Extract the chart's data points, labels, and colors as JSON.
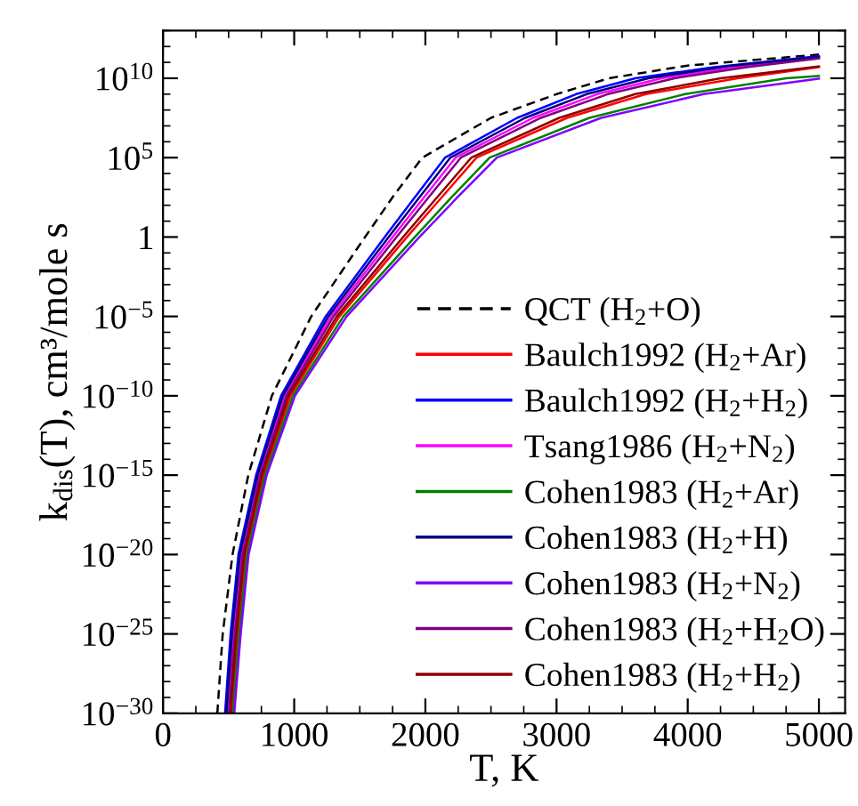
{
  "chart_data": {
    "type": "line",
    "xlabel": "T, K",
    "ylabel": "k$_{dis}$(T), cm³/mole s",
    "xlim": [
      0,
      5200
    ],
    "xticks": [
      0,
      1000,
      2000,
      3000,
      4000,
      5000
    ],
    "ylim": [
      1e-30,
      10000000000000.0
    ],
    "log": "y",
    "yticks": [
      {
        "value": 1e-30,
        "label": "10$^{−30}$"
      },
      {
        "value": 1e-25,
        "label": "10$^{−25}$"
      },
      {
        "value": 1e-20,
        "label": "10$^{−20}$"
      },
      {
        "value": 1e-15,
        "label": "10$^{−15}$"
      },
      {
        "value": 1e-10,
        "label": "10$^{−10}$"
      },
      {
        "value": 1e-05,
        "label": "10$^{−5}$"
      },
      {
        "value": 1,
        "label": "1"
      },
      {
        "value": 100000.0,
        "label": "10$^{5}$"
      },
      {
        "value": 10000000000.0,
        "label": "10$^{10}$"
      }
    ],
    "grid": false,
    "legend": "bottom right",
    "marker": "none",
    "series": [
      {
        "name": "QCT (H$_{2}$+O)",
        "color": "#000000",
        "line_style": "dashed",
        "x": [
          414,
          455,
          530,
          650,
          830,
          1130,
          1540,
          1750,
          1977,
          2500,
          3000,
          3400,
          4000,
          5000
        ],
        "values": [
          1e-30,
          1e-25,
          1e-20,
          1e-15,
          1e-10,
          1e-05,
          1,
          320,
          100000.0,
          32000000.0,
          1000000000.0,
          10000000000.0,
          63000000000.0,
          310000000000.0
        ]
      },
      {
        "name": "Baulch1992 (H$_{2}$+Ar)",
        "color": "#ff0000",
        "line_style": "solid",
        "x": [
          523,
          570,
          630,
          765,
          972,
          1345,
          1860,
          2125,
          2390,
          3080,
          3680,
          4380,
          5000
        ],
        "values": [
          1e-30,
          1e-25,
          1e-20,
          1e-15,
          1e-10,
          1e-05,
          1,
          320,
          100000.0,
          32000000.0,
          1000000000.0,
          10000000000.0,
          50000000000.0
        ]
      },
      {
        "name": "Baulch1992 (H$_{2}$+H$_{2}$)",
        "color": "#0000ff",
        "line_style": "solid",
        "x": [
          473,
          515,
          575,
          710,
          900,
          1240,
          1690,
          1920,
          2150,
          2700,
          3150,
          3600,
          4200,
          5000
        ],
        "values": [
          1e-30,
          1e-25,
          1e-20,
          1e-15,
          1e-10,
          1e-05,
          1,
          320,
          100000.0,
          32000000.0,
          1000000000.0,
          10000000000.0,
          50000000000.0,
          250000000000.0
        ]
      },
      {
        "name": "Tsang1986 (H$_{2}$+N$_{2}$)",
        "color": "#ff00ff",
        "line_style": "solid",
        "x": [
          493,
          537,
          597,
          732,
          928,
          1280,
          1750,
          1990,
          2230,
          2820,
          3310,
          3800,
          4400,
          5000
        ],
        "values": [
          1e-30,
          1e-25,
          1e-20,
          1e-15,
          1e-10,
          1e-05,
          1,
          320,
          100000.0,
          32000000.0,
          1000000000.0,
          10000000000.0,
          56000000000.0,
          200000000000.0
        ]
      },
      {
        "name": "Cohen1983 (H$_{2}$+Ar)",
        "color": "#008000",
        "line_style": "solid",
        "x": [
          533,
          581,
          641,
          778,
          990,
          1375,
          1920,
          2200,
          2490,
          3250,
          3980,
          4750,
          5000
        ],
        "values": [
          1e-30,
          1e-25,
          1e-20,
          1e-15,
          1e-10,
          1e-05,
          1,
          320,
          100000.0,
          32000000.0,
          1000000000.0,
          10000000000.0,
          14000000000.0
        ]
      },
      {
        "name": "Cohen1983 (H$_{2}$+H)",
        "color": "#000080",
        "line_style": "solid",
        "x": [
          483,
          526,
          586,
          721,
          914,
          1260,
          1720,
          1955,
          2190,
          2760,
          3230,
          3700,
          4300,
          5000
        ],
        "values": [
          1e-30,
          1e-25,
          1e-20,
          1e-15,
          1e-10,
          1e-05,
          1,
          320,
          100000.0,
          32000000.0,
          1000000000.0,
          10000000000.0,
          56000000000.0,
          220000000000.0
        ]
      },
      {
        "name": "Cohen1983 (H$_{2}$+N$_{2}$)",
        "color": "#8000ff",
        "line_style": "solid",
        "x": [
          543,
          592,
          652,
          790,
          1006,
          1400,
          1955,
          2245,
          2545,
          3340,
          4120,
          5000
        ],
        "values": [
          1e-30,
          1e-25,
          1e-20,
          1e-15,
          1e-10,
          1e-05,
          1,
          320,
          100000.0,
          32000000.0,
          1000000000.0,
          9300000000.0
        ]
      },
      {
        "name": "Cohen1983 (H$_{2}$+H$_{2}$O)",
        "color": "#800080",
        "line_style": "solid",
        "x": [
          503,
          548,
          608,
          743,
          942,
          1300,
          1780,
          2025,
          2270,
          2880,
          3390,
          3900,
          4450,
          5000
        ],
        "values": [
          1e-30,
          1e-25,
          1e-20,
          1e-15,
          1e-10,
          1e-05,
          1,
          320,
          100000.0,
          32000000.0,
          1000000000.0,
          10000000000.0,
          50000000000.0,
          180000000000.0
        ]
      },
      {
        "name": "Cohen1983 (H$_{2}$+H$_{2}$)",
        "color": "#8b0000",
        "line_style": "solid",
        "x": [
          513,
          559,
          619,
          754,
          957,
          1325,
          1830,
          2090,
          2350,
          3020,
          3600,
          4250,
          5000
        ],
        "values": [
          1e-30,
          1e-25,
          1e-20,
          1e-15,
          1e-10,
          1e-05,
          1,
          320,
          100000.0,
          32000000.0,
          1000000000.0,
          10000000000.0,
          56000000000.0
        ]
      }
    ]
  }
}
